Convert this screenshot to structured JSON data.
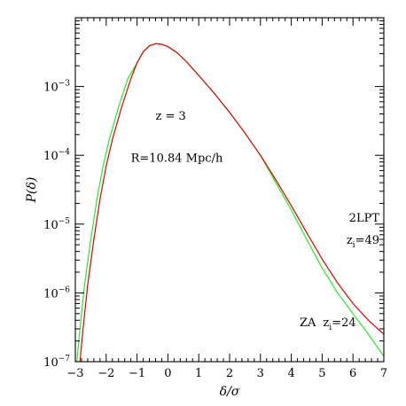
{
  "chart_data": {
    "type": "line",
    "title": "",
    "xlabel": "δ/σ",
    "ylabel": "P(δ)",
    "xlim": [
      -3,
      7
    ],
    "ylim": [
      1e-07,
      0.01
    ],
    "yscale": "log",
    "grid": false,
    "x_ticks": [
      -3,
      -2,
      -1,
      0,
      1,
      2,
      3,
      4,
      5,
      6,
      7
    ],
    "y_ticks": [
      {
        "value": 1e-07,
        "mantissa": "10",
        "exp": "−7"
      },
      {
        "value": 1e-06,
        "mantissa": "10",
        "exp": "−6"
      },
      {
        "value": 1e-05,
        "mantissa": "10",
        "exp": "−5"
      },
      {
        "value": 0.0001,
        "mantissa": "10",
        "exp": "−4"
      },
      {
        "value": 0.001,
        "mantissa": "10",
        "exp": "−3"
      }
    ],
    "annotations": [
      {
        "text": "z = 3",
        "x": -0.4,
        "y": 0.00033
      },
      {
        "text": "R=10.84 Mpc/h",
        "x": -1.2,
        "y": 8e-05
      }
    ],
    "series": [
      {
        "name": "2LPT",
        "label_sub": "z",
        "label_subscript": "i",
        "label_value": "=49",
        "color": "#e00000",
        "x": [
          -2.85,
          -2.75,
          -2.6,
          -2.4,
          -2.2,
          -2.0,
          -1.8,
          -1.5,
          -1.2,
          -1.0,
          -0.8,
          -0.6,
          -0.4,
          -0.2,
          0.0,
          0.3,
          0.6,
          1.0,
          1.5,
          2.0,
          2.5,
          3.0,
          3.5,
          4.0,
          4.5,
          5.0,
          5.5,
          6.0,
          6.5,
          7.0
        ],
        "y": [
          1e-07,
          3e-07,
          1.3e-06,
          6e-06,
          2.3e-05,
          7e-05,
          0.00017,
          0.0005,
          0.0013,
          0.0022,
          0.0032,
          0.0039,
          0.0042,
          0.0041,
          0.0038,
          0.0031,
          0.0023,
          0.00145,
          0.0008,
          0.00042,
          0.00021,
          0.0001,
          4.4e-05,
          1.85e-05,
          7.5e-06,
          3.1e-06,
          1.4e-06,
          7e-07,
          4e-07,
          2.5e-07
        ]
      },
      {
        "name": "ZA",
        "label_sub": "z",
        "label_subscript": "i",
        "label_value": "=24",
        "color": "#22ee22",
        "x": [
          -2.95,
          -2.85,
          -2.7,
          -2.5,
          -2.3,
          -2.1,
          -1.9,
          -1.6,
          -1.3,
          -1.0,
          -0.8,
          -0.6,
          -0.4,
          -0.2,
          0.0,
          0.3,
          0.6,
          1.0,
          1.5,
          2.0,
          2.5,
          3.0,
          3.5,
          4.0,
          4.5,
          5.0,
          5.5,
          6.0,
          6.5,
          7.0
        ],
        "y": [
          1e-07,
          3e-07,
          1.3e-06,
          6e-06,
          2.3e-05,
          7e-05,
          0.00017,
          0.0005,
          0.0013,
          0.0022,
          0.0032,
          0.0039,
          0.0042,
          0.0041,
          0.0038,
          0.0031,
          0.0023,
          0.00145,
          0.0008,
          0.00042,
          0.00021,
          0.0001,
          4e-05,
          1.6e-05,
          6e-06,
          2.3e-06,
          1e-06,
          5e-07,
          2.5e-07,
          1.2e-07
        ]
      }
    ]
  }
}
